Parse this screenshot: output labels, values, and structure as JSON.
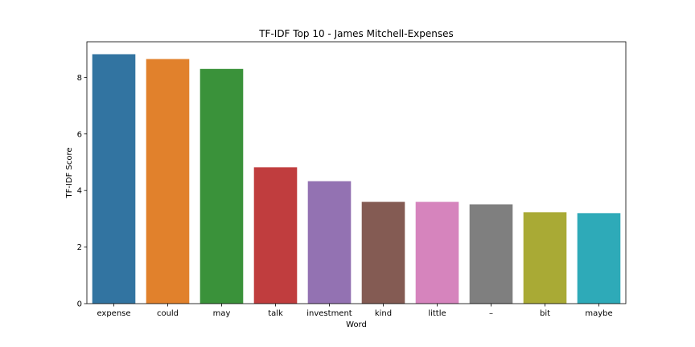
{
  "chart_data": {
    "type": "bar",
    "title": "TF-IDF Top 10 - James Mitchell-Expenses",
    "xlabel": "Word",
    "ylabel": "TF-IDF Score",
    "categories": [
      "expense",
      "could",
      "may",
      "talk",
      "investment",
      "kind",
      "little",
      "–",
      "bit",
      "maybe"
    ],
    "values": [
      8.82,
      8.65,
      8.3,
      4.82,
      4.33,
      3.6,
      3.6,
      3.51,
      3.23,
      3.2
    ],
    "colors": [
      "#3274a1",
      "#e1812c",
      "#3a923a",
      "#c03d3e",
      "#9372b2",
      "#845b53",
      "#d684bd",
      "#7f7f7f",
      "#a9aa35",
      "#2eaab8"
    ],
    "yticks": [
      0,
      2,
      4,
      6,
      8
    ],
    "ylim": [
      0,
      9.26
    ],
    "grid": false,
    "legend": "none"
  }
}
